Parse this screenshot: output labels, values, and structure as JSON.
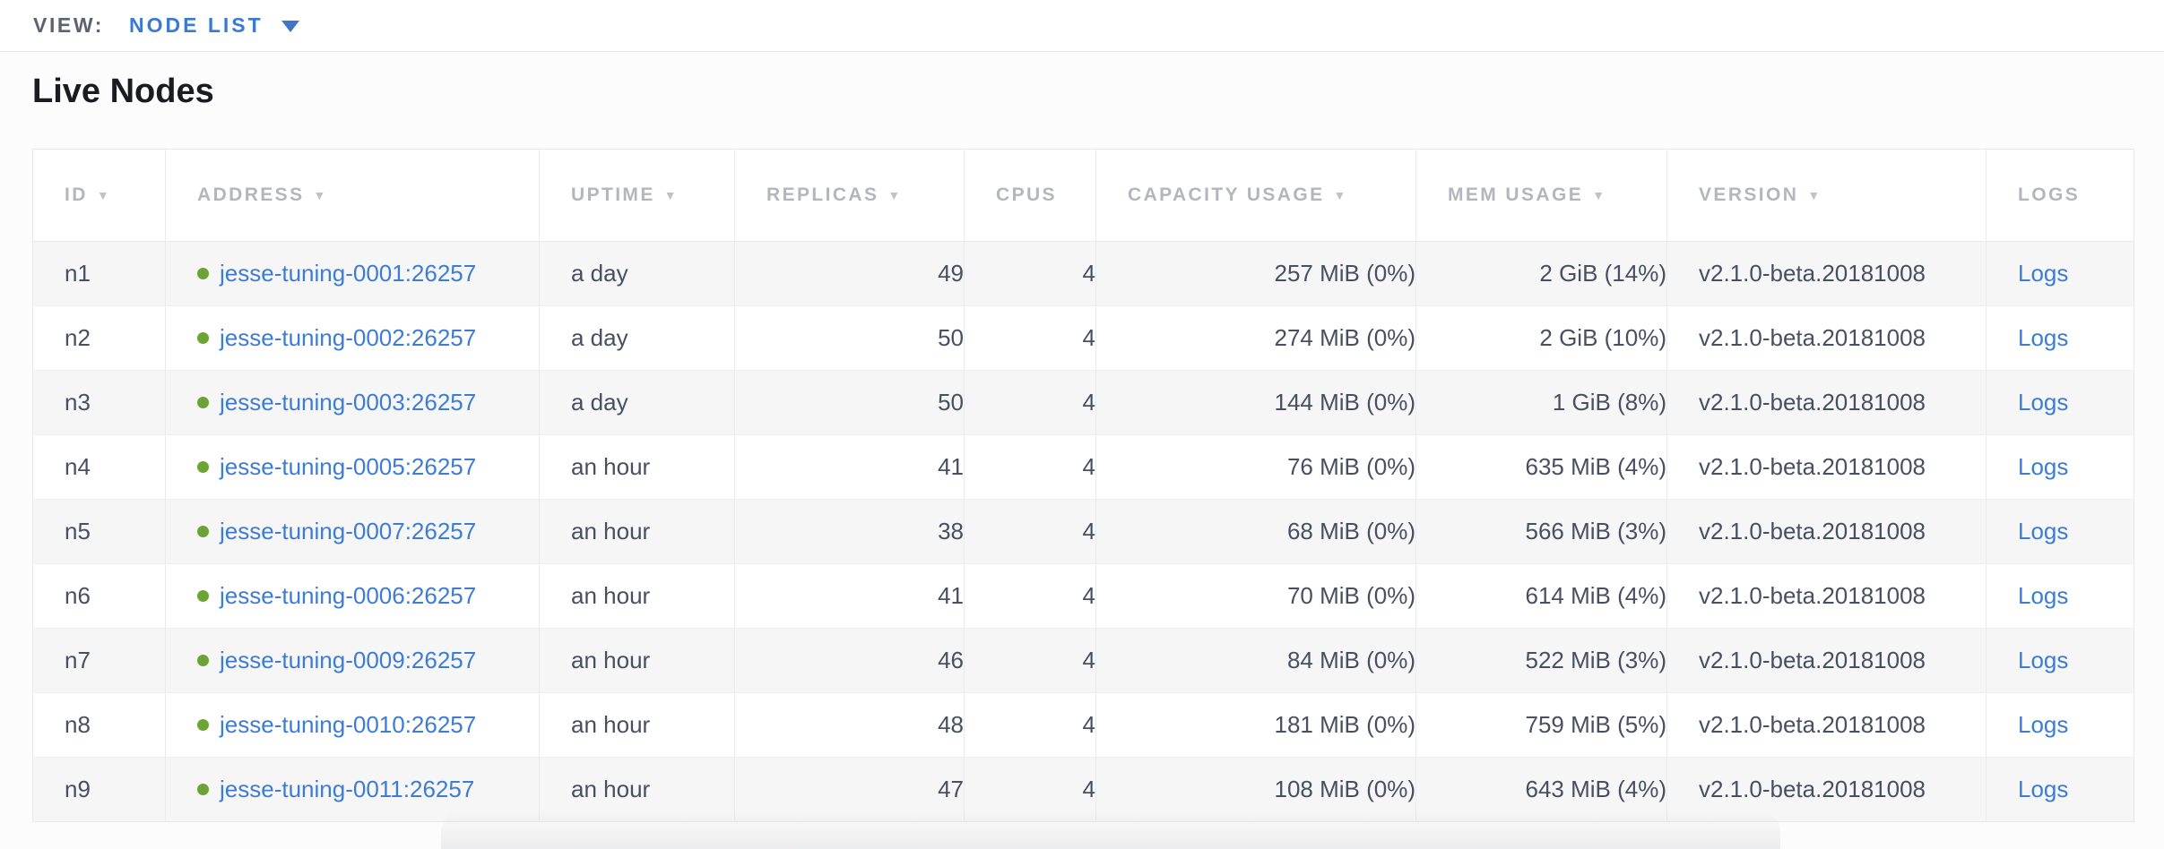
{
  "toolbar": {
    "view_label": "VIEW:",
    "view_value": "NODE LIST"
  },
  "page": {
    "title": "Live Nodes"
  },
  "table": {
    "sort_glyph": "▼",
    "logs_label": "Logs",
    "columns": [
      {
        "label": "ID",
        "sorted": true
      },
      {
        "label": "ADDRESS",
        "sorted": true
      },
      {
        "label": "UPTIME",
        "sorted": true
      },
      {
        "label": "REPLICAS",
        "sorted": true
      },
      {
        "label": "CPUS",
        "sorted": false
      },
      {
        "label": "CAPACITY USAGE",
        "sorted": true
      },
      {
        "label": "MEM USAGE",
        "sorted": true
      },
      {
        "label": "VERSION",
        "sorted": true
      },
      {
        "label": "LOGS",
        "sorted": false
      }
    ],
    "rows": [
      {
        "id": "n1",
        "status": "healthy",
        "address": "jesse-tuning-0001:26257",
        "uptime": "a day",
        "replicas": "49",
        "cpus": "4",
        "capacity": "257 MiB (0%)",
        "mem": "2 GiB (14%)",
        "version": "v2.1.0-beta.20181008"
      },
      {
        "id": "n2",
        "status": "healthy",
        "address": "jesse-tuning-0002:26257",
        "uptime": "a day",
        "replicas": "50",
        "cpus": "4",
        "capacity": "274 MiB (0%)",
        "mem": "2 GiB (10%)",
        "version": "v2.1.0-beta.20181008"
      },
      {
        "id": "n3",
        "status": "healthy",
        "address": "jesse-tuning-0003:26257",
        "uptime": "a day",
        "replicas": "50",
        "cpus": "4",
        "capacity": "144 MiB (0%)",
        "mem": "1 GiB (8%)",
        "version": "v2.1.0-beta.20181008"
      },
      {
        "id": "n4",
        "status": "healthy",
        "address": "jesse-tuning-0005:26257",
        "uptime": "an hour",
        "replicas": "41",
        "cpus": "4",
        "capacity": "76 MiB (0%)",
        "mem": "635 MiB (4%)",
        "version": "v2.1.0-beta.20181008"
      },
      {
        "id": "n5",
        "status": "healthy",
        "address": "jesse-tuning-0007:26257",
        "uptime": "an hour",
        "replicas": "38",
        "cpus": "4",
        "capacity": "68 MiB (0%)",
        "mem": "566 MiB (3%)",
        "version": "v2.1.0-beta.20181008"
      },
      {
        "id": "n6",
        "status": "healthy",
        "address": "jesse-tuning-0006:26257",
        "uptime": "an hour",
        "replicas": "41",
        "cpus": "4",
        "capacity": "70 MiB (0%)",
        "mem": "614 MiB (4%)",
        "version": "v2.1.0-beta.20181008"
      },
      {
        "id": "n7",
        "status": "healthy",
        "address": "jesse-tuning-0009:26257",
        "uptime": "an hour",
        "replicas": "46",
        "cpus": "4",
        "capacity": "84 MiB (0%)",
        "mem": "522 MiB (3%)",
        "version": "v2.1.0-beta.20181008"
      },
      {
        "id": "n8",
        "status": "healthy",
        "address": "jesse-tuning-0010:26257",
        "uptime": "an hour",
        "replicas": "48",
        "cpus": "4",
        "capacity": "181 MiB (0%)",
        "mem": "759 MiB (5%)",
        "version": "v2.1.0-beta.20181008"
      },
      {
        "id": "n9",
        "status": "healthy",
        "address": "jesse-tuning-0011:26257",
        "uptime": "an hour",
        "replicas": "47",
        "cpus": "4",
        "capacity": "108 MiB (0%)",
        "mem": "643 MiB (4%)",
        "version": "v2.1.0-beta.20181008"
      }
    ]
  },
  "colors": {
    "accent_blue": "#3d7cd4",
    "healthy_green": "#6ba334",
    "header_gray": "#b3b6bd",
    "text_dark": "#474f61"
  }
}
